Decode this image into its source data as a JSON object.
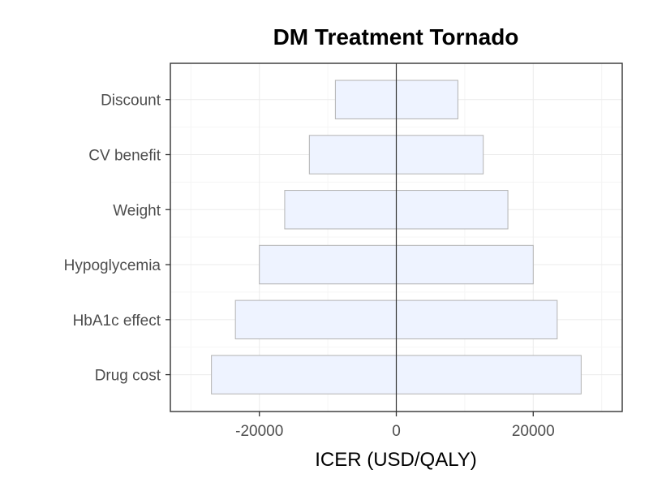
{
  "chart_data": {
    "type": "bar",
    "orientation": "horizontal",
    "subtype": "tornado",
    "title": "DM Treatment Tornado",
    "xlabel": "ICER (USD/QALY)",
    "ylabel": "",
    "xlim": [
      -33000,
      33000
    ],
    "x_ticks": [
      -20000,
      0,
      20000
    ],
    "x_tick_labels": [
      "-20000",
      "0",
      "20000"
    ],
    "reference_line": 0,
    "categories": [
      "Drug cost",
      "HbA1c effect",
      "Hypoglycemia",
      "Weight",
      "CV benefit",
      "Discount"
    ],
    "series": [
      {
        "low": [
          -27000,
          -23500,
          -20000,
          -16300,
          -12700,
          -8900
        ],
        "high": [
          27000,
          23500,
          20000,
          16300,
          12700,
          9000
        ]
      }
    ],
    "grid": true,
    "bar_color": "#eef3ff",
    "bar_border_color": "#b3b3b3"
  }
}
